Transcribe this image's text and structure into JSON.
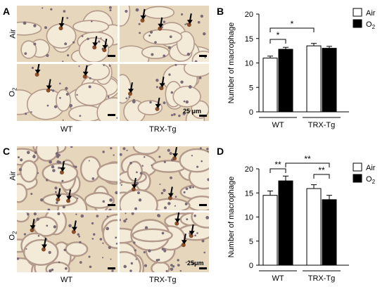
{
  "panels": {
    "A": "A",
    "B": "B",
    "C": "C",
    "D": "D"
  },
  "micrographs": {
    "row_labels": [
      "Air",
      "O",
      "2"
    ],
    "col_labels": [
      "WT",
      "TRX-Tg"
    ],
    "scale_bar": "25 μm",
    "scale_bar_c": "25μm"
  },
  "colors": {
    "air_bar": "#ffffff",
    "o2_bar": "#000000",
    "tissue_bg": "#e6d7bc",
    "septa": "#b39a8a",
    "stained_cell": "#8a4f2a"
  },
  "chart_data": [
    {
      "type": "bar",
      "panel": "B",
      "ylabel": "Number of macrophage",
      "ylim": [
        0,
        20
      ],
      "yticks": [
        0,
        5,
        10,
        15,
        20
      ],
      "groups": [
        "WT",
        "TRX-Tg"
      ],
      "series": [
        {
          "name": "Air",
          "values": [
            11.0,
            13.5
          ],
          "errors": [
            0.4,
            0.5
          ]
        },
        {
          "name": "O",
          "name_sub": "2",
          "values": [
            12.8,
            13.0
          ],
          "errors": [
            0.4,
            0.4
          ]
        }
      ],
      "significance": [
        {
          "label": "*",
          "from": "WT Air",
          "to": "WT O2"
        },
        {
          "label": "*",
          "from": "WT Air",
          "to": "TRX-Tg Air"
        }
      ],
      "legend": "top-right"
    },
    {
      "type": "bar",
      "panel": "D",
      "ylabel": "Number of macrophage",
      "ylim": [
        0,
        20
      ],
      "yticks": [
        0,
        5,
        10,
        15,
        20
      ],
      "groups": [
        "WT",
        "TRX-Tg"
      ],
      "series": [
        {
          "name": "Air",
          "values": [
            14.5,
            15.9
          ],
          "errors": [
            0.9,
            0.8
          ]
        },
        {
          "name": "O",
          "name_sub": "2",
          "values": [
            17.5,
            13.6
          ],
          "errors": [
            1.0,
            0.9
          ]
        }
      ],
      "significance": [
        {
          "label": "**",
          "from": "WT Air",
          "to": "WT O2"
        },
        {
          "label": "**",
          "from": "WT O2",
          "to": "TRX-Tg O2"
        },
        {
          "label": "**",
          "from": "TRX-Tg Air",
          "to": "TRX-Tg O2"
        }
      ],
      "legend": "top-right"
    }
  ]
}
